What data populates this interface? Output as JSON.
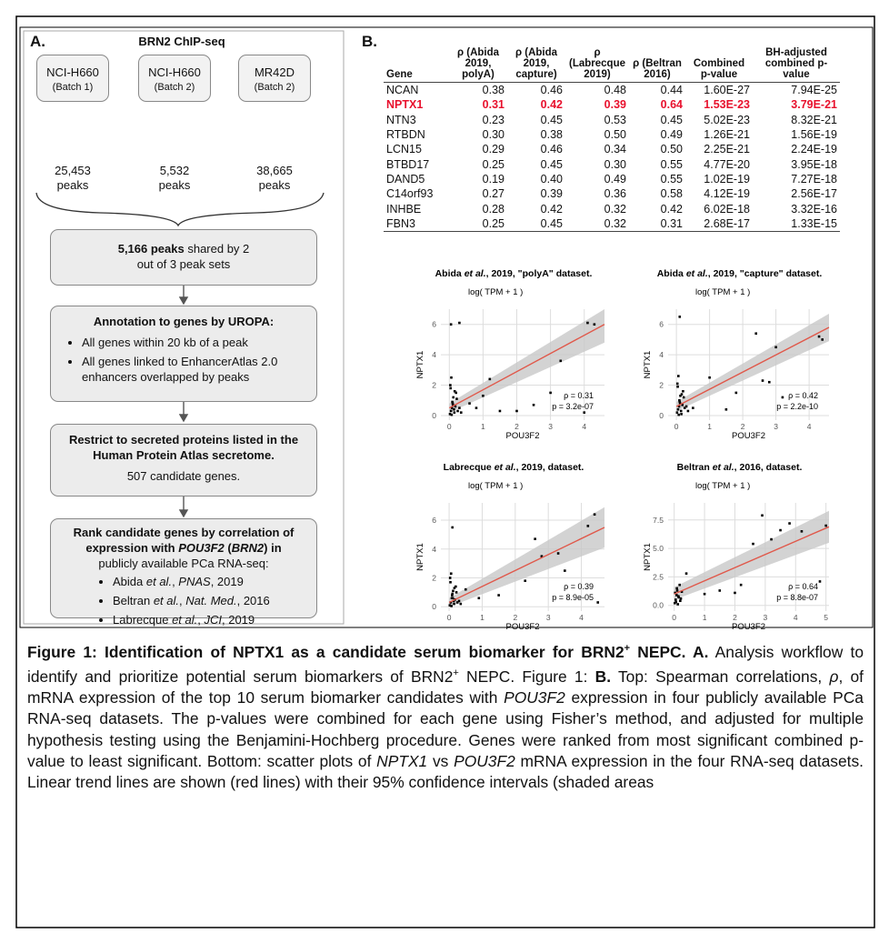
{
  "panel_a": {
    "label": "A.",
    "title": "BRN2 ChIP-seq",
    "samples": [
      {
        "name": "NCI-H660",
        "batch": "(Batch 1)",
        "peaks": "25,453",
        "unit": "peaks"
      },
      {
        "name": "NCI-H660",
        "batch": "(Batch 2)",
        "peaks": "5,532",
        "unit": "peaks"
      },
      {
        "name": "MR42D",
        "batch": "(Batch 2)",
        "peaks": "38,665",
        "unit": "peaks"
      }
    ],
    "step1": [
      "5,166 peaks",
      " shared by 2 out of 3 peak sets"
    ],
    "step2": {
      "title": "Annotation to genes by UROPA:",
      "bullets": [
        "All genes within 20 kb of a peak",
        "All genes linked to EnhancerAtlas 2.0 enhancers overlapped by peaks"
      ]
    },
    "step3": {
      "title": "Restrict to secreted proteins listed in the Human Protein Atlas secretome.",
      "text": "507 candidate genes."
    },
    "step4": {
      "title": [
        "Rank candidate genes by correlation of expression with ",
        "POU3F2",
        " (",
        "BRN2",
        ") in"
      ],
      "text": "publicly available PCa RNA-seq:",
      "bullets": [
        [
          "Abida ",
          "et al.",
          ", ",
          "PNAS",
          ", 2019"
        ],
        [
          "Beltran ",
          "et al.",
          ", ",
          "Nat. Med.",
          ", 2016"
        ],
        [
          "Labrecque ",
          "et al.",
          ", ",
          "JCI",
          ", 2019"
        ]
      ]
    }
  },
  "panel_b": {
    "label": "B.",
    "table": {
      "headers": [
        "Gene",
        "ρ (Abida 2019, polyA)",
        "ρ (Abida 2019, capture)",
        "ρ (Labrecque 2019)",
        "ρ (Beltran 2016)",
        "Combined p-value",
        "BH-adjusted combined p-value"
      ],
      "highlight_row": 1,
      "highlight_color": "#e8112d",
      "rows": [
        [
          "NCAN",
          "0.38",
          "0.46",
          "0.48",
          "0.44",
          "1.60E-27",
          "7.94E-25"
        ],
        [
          "NPTX1",
          "0.31",
          "0.42",
          "0.39",
          "0.64",
          "1.53E-23",
          "3.79E-21"
        ],
        [
          "NTN3",
          "0.23",
          "0.45",
          "0.53",
          "0.45",
          "5.02E-23",
          "8.32E-21"
        ],
        [
          "RTBDN",
          "0.30",
          "0.38",
          "0.50",
          "0.49",
          "1.26E-21",
          "1.56E-19"
        ],
        [
          "LCN15",
          "0.29",
          "0.46",
          "0.34",
          "0.50",
          "2.25E-21",
          "2.24E-19"
        ],
        [
          "BTBD17",
          "0.25",
          "0.45",
          "0.30",
          "0.55",
          "4.77E-20",
          "3.95E-18"
        ],
        [
          "DAND5",
          "0.19",
          "0.40",
          "0.49",
          "0.55",
          "1.02E-19",
          "7.27E-18"
        ],
        [
          "C14orf93",
          "0.27",
          "0.39",
          "0.36",
          "0.58",
          "4.12E-19",
          "2.56E-17"
        ],
        [
          "INHBE",
          "0.28",
          "0.42",
          "0.32",
          "0.42",
          "6.02E-18",
          "3.32E-16"
        ],
        [
          "FBN3",
          "0.25",
          "0.45",
          "0.32",
          "0.31",
          "2.68E-17",
          "1.33E-15"
        ]
      ]
    }
  },
  "chart_data": [
    {
      "type": "scatter",
      "title": [
        "Abida ",
        "et al.",
        ", 2019, \"polyA\" dataset."
      ],
      "subtitle": "log( TPM + 1 )",
      "xlabel": "POU3F2",
      "ylabel": "NPTX1",
      "point_color": "#000000",
      "trend_color": "#e0584a",
      "ci_color": "#c8c8c8",
      "xlim": [
        -0.25,
        4.6
      ],
      "ylim": [
        -0.3,
        7.0
      ],
      "xticks": [
        0,
        1,
        2,
        3,
        4
      ],
      "yticks": [
        0,
        2,
        4,
        6
      ],
      "grid": true,
      "x": [
        0.02,
        0.05,
        0.08,
        0.1,
        0.12,
        0.15,
        0.18,
        0.2,
        0.03,
        0.06,
        0.09,
        0.14,
        0.22,
        0.25,
        0.04,
        0.07,
        0.11,
        0.16,
        0.3,
        0.35,
        0.05,
        0.3,
        0.6,
        0.8,
        1.0,
        1.2,
        1.5,
        2.0,
        2.5,
        3.0,
        3.3,
        4.0,
        4.1,
        4.3
      ],
      "y": [
        0.1,
        0.3,
        0.5,
        0.8,
        1.2,
        0.2,
        0.6,
        1.5,
        2.0,
        2.5,
        0.9,
        0.4,
        1.1,
        0.3,
        1.8,
        0.05,
        0.7,
        1.6,
        0.5,
        0.2,
        6.0,
        6.1,
        0.8,
        0.5,
        1.3,
        2.4,
        0.3,
        0.3,
        0.7,
        1.5,
        3.6,
        0.2,
        6.1,
        6.0
      ],
      "trend_x": [
        0,
        4.6
      ],
      "trend_y": [
        0.5,
        6.0
      ],
      "ci_lower": [
        0.2,
        4.8
      ],
      "ci_upper": [
        0.8,
        7.0
      ],
      "annotations": [
        "ρ = 0.31",
        "p = 3.2e-07"
      ]
    },
    {
      "type": "scatter",
      "title": [
        "Abida ",
        "et al.",
        ", 2019, \"capture\" dataset."
      ],
      "subtitle": "log( TPM + 1 )",
      "xlabel": "POU3F2",
      "ylabel": "NPTX1",
      "point_color": "#000000",
      "trend_color": "#e0584a",
      "ci_color": "#c8c8c8",
      "xlim": [
        -0.25,
        4.6
      ],
      "ylim": [
        -0.3,
        7.0
      ],
      "xticks": [
        0,
        1,
        2,
        3,
        4
      ],
      "yticks": [
        0,
        2,
        4,
        6
      ],
      "grid": true,
      "x": [
        0.02,
        0.05,
        0.08,
        0.1,
        0.12,
        0.15,
        0.18,
        0.2,
        0.03,
        0.06,
        0.09,
        0.14,
        0.22,
        0.25,
        0.04,
        0.07,
        0.11,
        0.16,
        0.3,
        0.35,
        0.1,
        0.5,
        1.0,
        1.5,
        1.8,
        2.4,
        2.6,
        2.8,
        3.0,
        3.2,
        4.3,
        4.4
      ],
      "y": [
        0.2,
        0.4,
        0.6,
        0.9,
        1.3,
        0.1,
        0.7,
        1.6,
        2.1,
        2.6,
        1.0,
        0.3,
        1.2,
        0.5,
        1.9,
        0.05,
        0.8,
        1.4,
        0.6,
        0.3,
        6.5,
        0.5,
        2.5,
        0.4,
        1.5,
        5.4,
        2.3,
        2.2,
        4.5,
        1.2,
        5.2,
        5.0
      ],
      "trend_x": [
        0,
        4.6
      ],
      "trend_y": [
        0.6,
        5.8
      ],
      "ci_lower": [
        0.3,
        4.9
      ],
      "ci_upper": [
        0.9,
        6.7
      ],
      "annotations": [
        "ρ = 0.42",
        "p = 2.2e-10"
      ]
    },
    {
      "type": "scatter",
      "title": [
        "Labrecque ",
        "et al.",
        ", 2019, dataset."
      ],
      "subtitle": "log( TPM + 1 )",
      "xlabel": "POU3F2",
      "ylabel": "NPTX1",
      "point_color": "#000000",
      "trend_color": "#e0584a",
      "ci_color": "#c8c8c8",
      "xlim": [
        -0.25,
        4.7
      ],
      "ylim": [
        -0.3,
        7.2
      ],
      "xticks": [
        0,
        1,
        2,
        3,
        4
      ],
      "yticks": [
        0,
        2,
        4,
        6
      ],
      "grid": true,
      "x": [
        0.02,
        0.05,
        0.08,
        0.1,
        0.12,
        0.15,
        0.18,
        0.2,
        0.03,
        0.06,
        0.09,
        0.14,
        0.22,
        0.25,
        0.04,
        0.07,
        0.11,
        0.16,
        0.3,
        0.35,
        0.1,
        0.5,
        0.9,
        1.5,
        2.3,
        2.6,
        2.8,
        3.3,
        3.5,
        4.2,
        4.4,
        4.5
      ],
      "y": [
        0.1,
        0.3,
        0.6,
        0.9,
        1.1,
        0.2,
        0.5,
        1.4,
        2.0,
        2.3,
        0.8,
        0.4,
        1.0,
        0.3,
        1.7,
        0.05,
        0.6,
        1.3,
        0.4,
        0.2,
        5.5,
        1.2,
        0.6,
        0.8,
        1.8,
        4.7,
        3.5,
        3.7,
        2.5,
        5.6,
        6.4,
        0.3
      ],
      "trend_x": [
        0,
        4.7
      ],
      "trend_y": [
        0.3,
        5.5
      ],
      "ci_lower": [
        0.0,
        4.1
      ],
      "ci_upper": [
        0.6,
        6.9
      ],
      "annotations": [
        "ρ = 0.39",
        "p = 8.9e-05"
      ]
    },
    {
      "type": "scatter",
      "title": [
        "Beltran ",
        "et al.",
        ", 2016, dataset."
      ],
      "subtitle": "log( TPM + 1 )",
      "xlabel": "POU3F2",
      "ylabel": "NPTX1",
      "point_color": "#000000",
      "trend_color": "#e0584a",
      "ci_color": "#c8c8c8",
      "xlim": [
        -0.2,
        5.1
      ],
      "ylim": [
        -0.5,
        9.0
      ],
      "xticks": [
        0,
        1,
        2,
        3,
        4,
        5
      ],
      "yticks": [
        {
          "value": 0,
          "label": "0.0"
        },
        {
          "value": 2.5,
          "label": "2.5"
        },
        {
          "value": 5,
          "label": "5.0"
        },
        {
          "value": 7.5,
          "label": "7.5"
        }
      ],
      "grid": true,
      "x": [
        0.02,
        0.05,
        0.08,
        0.1,
        0.12,
        0.15,
        0.18,
        0.2,
        0.03,
        0.06,
        0.09,
        0.14,
        0.22,
        0.25,
        0.4,
        1.0,
        1.5,
        2.0,
        2.2,
        2.6,
        2.9,
        3.2,
        3.5,
        3.8,
        4.2,
        4.8,
        5.0
      ],
      "y": [
        0.2,
        0.5,
        0.9,
        1.3,
        0.1,
        0.7,
        1.8,
        0.4,
        1.1,
        0.3,
        1.5,
        0.8,
        0.6,
        1.2,
        2.8,
        1.0,
        1.3,
        1.1,
        1.8,
        5.4,
        7.9,
        5.8,
        6.6,
        7.2,
        6.5,
        2.1,
        7.0
      ],
      "trend_x": [
        0,
        5.1
      ],
      "trend_y": [
        1.0,
        6.9
      ],
      "ci_lower": [
        0.5,
        5.5
      ],
      "ci_upper": [
        1.6,
        8.3
      ],
      "annotations": [
        "ρ = 0.64",
        "p = 8.8e-07"
      ]
    }
  ],
  "caption": [
    "Figure 1: Identification of NPTX1 as a candidate serum biomarker for BRN2",
    "+",
    " NEPC.",
    " A.",
    " Analysis workflow to identify and prioritize potential serum biomarkers of BRN2",
    "+",
    " NEPC. Figure 1: ",
    "B.",
    " Top: Spearman correlations, ",
    "ρ",
    ", of mRNA expression of the top 10 serum biomarker candidates with ",
    "POU3F2",
    " expression in four publicly available PCa RNA-seq datasets. The p-values were combined for each gene using Fisher’s method, and adjusted for multiple hypothesis testing using the Benjamini-Hochberg procedure. Genes were ranked from most significant combined p-value to least significant. Bottom: scatter plots of ",
    "NPTX1",
    " vs ",
    "POU3F2",
    " mRNA expression in the four RNA-seq datasets. Linear trend lines are shown (red lines) with their 95% confidence intervals (shaded areas"
  ]
}
